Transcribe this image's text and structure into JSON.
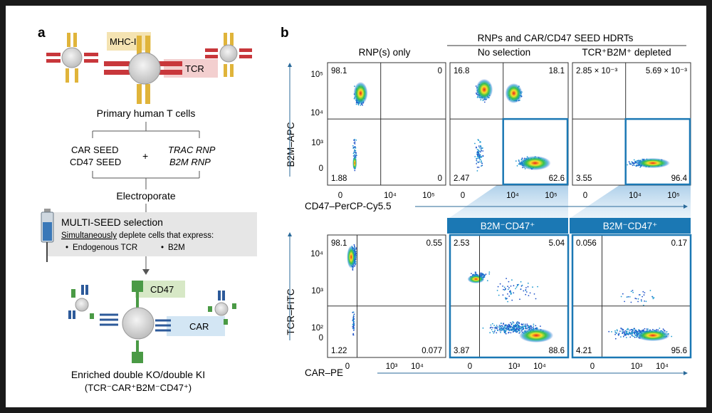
{
  "panel_a": {
    "label": "a",
    "mhc_label": "MHC-I",
    "tcr_label": "TCR",
    "cells_caption": "Primary human T cells",
    "reagents_left": [
      "CAR SEED",
      "CD47 SEED"
    ],
    "plus": "+",
    "reagents_right": [
      "TRAC RNP",
      "B2M RNP"
    ],
    "step_electroporate": "Electroporate",
    "selection_title": "MULTI-SEED selection",
    "selection_sub_under": "Simultaneously",
    "selection_sub_rest": " deplete cells that express:",
    "selection_bullets": [
      "Endogenous TCR",
      "B2M"
    ],
    "cd47_label": "CD47",
    "car_label": "CAR",
    "result_line1": "Enriched double KO/double KI",
    "result_line2": "(TCR⁻CAR⁺B2M⁻CD47⁺)"
  },
  "panel_b": {
    "label": "b",
    "group_header": "RNPs and CAR/CD47 SEED HDRTs",
    "col_titles": [
      "RNP(s) only",
      "No selection",
      "TCR⁺B2M⁺ depleted"
    ],
    "gated_titles": [
      "B2M⁻CD47⁺",
      "B2M⁻CD47⁺"
    ],
    "top_ylabel": "B2M–APC",
    "top_xlabel": "CD47–PerCP-Cy5.5",
    "bottom_ylabel": "TCR–FITC",
    "bottom_xlabel": "CAR–PE",
    "top_yticks": [
      "10⁵",
      "10⁴",
      "10³",
      "0"
    ],
    "top_xticks": [
      "0",
      "10⁴",
      "10⁵"
    ],
    "bottom_yticks": [
      "10⁴",
      "10³",
      "10²",
      "0"
    ],
    "bottom_xticks": [
      "0",
      "10³",
      "10⁴"
    ]
  },
  "chart_data": [
    {
      "type": "scatter",
      "title": "RNP(s) only",
      "xlabel": "CD47–PerCP-Cy5.5",
      "ylabel": "B2M–APC",
      "quadrants": {
        "upper_left": "98.1",
        "upper_right": "0",
        "lower_left": "1.88",
        "lower_right": "0"
      }
    },
    {
      "type": "scatter",
      "title": "No selection",
      "xlabel": "CD47–PerCP-Cy5.5",
      "ylabel": "B2M–APC",
      "quadrants": {
        "upper_left": "16.8",
        "upper_right": "18.1",
        "lower_left": "2.47",
        "lower_right": "62.6"
      }
    },
    {
      "type": "scatter",
      "title": "TCR⁺B2M⁺ depleted",
      "xlabel": "CD47–PerCP-Cy5.5",
      "ylabel": "B2M–APC",
      "quadrants": {
        "upper_left": "2.85 × 10⁻³",
        "upper_right": "5.69 × 10⁻³",
        "lower_left": "3.55",
        "lower_right": "96.4"
      }
    },
    {
      "type": "scatter",
      "title": "RNP(s) only",
      "xlabel": "CAR–PE",
      "ylabel": "TCR–FITC",
      "quadrants": {
        "upper_left": "98.1",
        "upper_right": "0.55",
        "lower_left": "1.22",
        "lower_right": "0.077"
      }
    },
    {
      "type": "scatter",
      "title": "B2M⁻CD47⁺ (No selection)",
      "xlabel": "CAR–PE",
      "ylabel": "TCR–FITC",
      "quadrants": {
        "upper_left": "2.53",
        "upper_right": "5.04",
        "lower_left": "3.87",
        "lower_right": "88.6"
      }
    },
    {
      "type": "scatter",
      "title": "B2M⁻CD47⁺ (TCR⁺B2M⁺ depleted)",
      "xlabel": "CAR–PE",
      "ylabel": "TCR–FITC",
      "quadrants": {
        "upper_left": "0.056",
        "upper_right": "0.17",
        "lower_left": "4.21",
        "lower_right": "95.6"
      }
    }
  ],
  "colors": {
    "teal": "#1b78b4",
    "tcr_red": "#c8373b",
    "mhc_gold": "#e0b43a",
    "car_blue": "#2d5a9a",
    "cd47_green": "#4a9a45",
    "grey_box": "#e6e6e6"
  }
}
